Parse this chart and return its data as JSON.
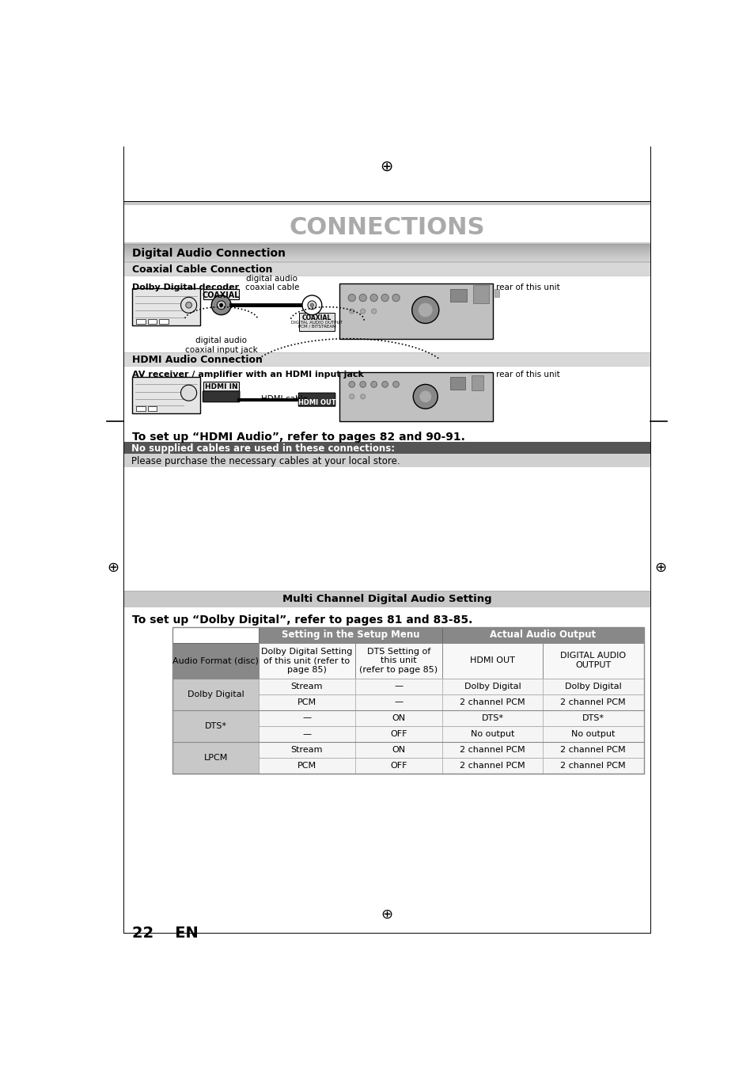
{
  "title": "CONNECTIONS",
  "title_color": "#aaaaaa",
  "bg_color": "#ffffff",
  "page_number": "22    EN",
  "section1_header": "Digital Audio Connection",
  "subsection1_header": "Coaxial Cable Connection",
  "subsection2_header": "HDMI Audio Connection",
  "decoder_label": "Dolby Digital decoder",
  "rear_label1": "rear of this unit",
  "cable_label1": "digital audio\ncoaxial cable",
  "coaxial_box_label": "COAXIAL",
  "input_jack_label": "digital audio\ncoaxial input jack",
  "receiver_label": "AV receiver / amplifier with an HDMI input jack",
  "rear_label2": "rear of this unit",
  "hdmi_cable_label": "HDMI cable",
  "hdmi_in_label": "HDMI IN",
  "hdmi_out_label": "HDMI OUT",
  "hdmi_note": "To set up “HDMI Audio”, refer to pages 82 and 90-91.",
  "warning_text1": "No supplied cables are used in these connections:",
  "warning_text2": "Please purchase the necessary cables at your local store.",
  "multichannel_header": "Multi Channel Digital Audio Setting",
  "dolby_note": "To set up “Dolby Digital”, refer to pages 81 and 83-85.",
  "table_data": [
    [
      "Stream",
      "—",
      "Dolby Digital",
      "Dolby Digital"
    ],
    [
      "PCM",
      "—",
      "2 channel PCM",
      "2 channel PCM"
    ],
    [
      "—",
      "ON",
      "DTS*",
      "DTS*"
    ],
    [
      "—",
      "OFF",
      "No output",
      "No output"
    ],
    [
      "Stream",
      "ON",
      "2 channel PCM",
      "2 channel PCM"
    ],
    [
      "PCM",
      "OFF",
      "2 channel PCM",
      "2 channel PCM"
    ]
  ],
  "row_groups": [
    "Dolby Digital",
    "DTS*",
    "LPCM"
  ]
}
